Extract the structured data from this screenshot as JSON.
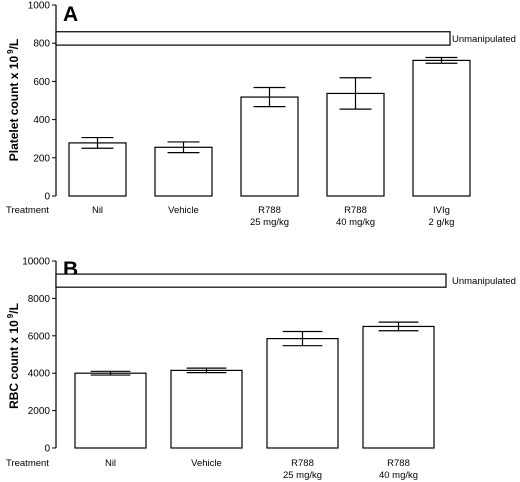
{
  "chart_data": [
    {
      "type": "bar",
      "panel": "A",
      "row_label": "Treatment",
      "categories": [
        {
          "line1": "Nil",
          "line2": ""
        },
        {
          "line1": "Vehicle",
          "line2": ""
        },
        {
          "line1": "R788",
          "line2": "25 mg/kg"
        },
        {
          "line1": "R788",
          "line2": "40 mg/kg"
        },
        {
          "line1": "IVIg",
          "line2": "2 g/kg"
        }
      ],
      "values": [
        278,
        255,
        518,
        537,
        710
      ],
      "errors": [
        28,
        28,
        50,
        82,
        15
      ],
      "ylabel_main": "Platelet count x 10",
      "ylabel_sup": "9",
      "ylabel_unit": "/L",
      "ylim": [
        0,
        1000
      ],
      "yticks": [
        0,
        200,
        400,
        600,
        800,
        1000
      ],
      "reference_band": {
        "label": "Unmanipulated",
        "low": 790,
        "high": 860
      }
    },
    {
      "type": "bar",
      "panel": "B",
      "row_label": "Treatment",
      "categories": [
        {
          "line1": "Nil",
          "line2": ""
        },
        {
          "line1": "Vehicle",
          "line2": ""
        },
        {
          "line1": "R788",
          "line2": "25 mg/kg"
        },
        {
          "line1": "R788",
          "line2": "40 mg/kg"
        }
      ],
      "values": [
        4000,
        4150,
        5850,
        6500
      ],
      "errors": [
        100,
        120,
        380,
        230
      ],
      "ylabel_main": "RBC count x 10",
      "ylabel_sup": "9",
      "ylabel_unit": "/L",
      "ylim": [
        0,
        10000
      ],
      "yticks": [
        0,
        2000,
        4000,
        6000,
        8000,
        10000
      ],
      "reference_band": {
        "label": "Unmanipulated",
        "low": 8600,
        "high": 9300
      }
    }
  ]
}
